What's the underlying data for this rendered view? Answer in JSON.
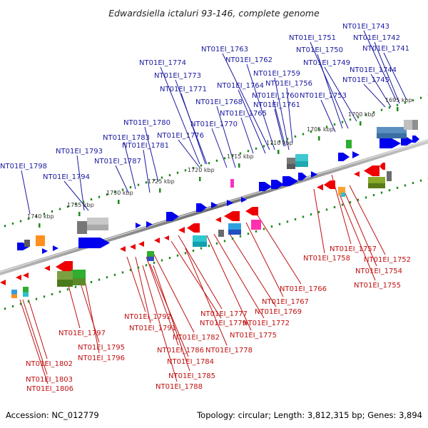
{
  "title": "Edwardsiella ictaluri 93-146, complete genome",
  "footer": {
    "accession": "Accession: NC_012779",
    "summary": "Topology: circular; Length: 3,812,315 bp; Genes: 3,894"
  },
  "colors": {
    "top_label": "#1a1aa0",
    "bottom_label": "#c01010",
    "forward_gene": "#0000ee",
    "reverse_gene": "#ee0000",
    "dots": "#1e8a1e"
  },
  "tick_labels": [
    "1695 kbp",
    "1700 kbp",
    "1705 kbp",
    "1710 kbp",
    "1715 kbp",
    "1720 kbp",
    "1725 kbp",
    "1730 kbp",
    "1735 kbp",
    "1740 kbp"
  ],
  "top_genes": [
    "NT01EI_1743",
    "NT01EI_1742",
    "NT01EI_1751",
    "NT01EI_1741",
    "NT01EI_1763",
    "NT01EI_1750",
    "NT01EI_1774",
    "NT01EI_1762",
    "NT01EI_1749",
    "NT01EI_1744",
    "NT01EI_1759",
    "NT01EI_1773",
    "NT01EI_1745",
    "NT01EI_1756",
    "NT01EI_1764",
    "NT01EI_1771",
    "NT01EI_1760",
    "NT01EI_1753",
    "NT01EI_1768",
    "NT01EI_1761",
    "NT01EI_1765",
    "NT01EI_1780",
    "NT01EI_1770",
    "NT01EI_1776",
    "NT01EI_1783",
    "NT01EI_1781",
    "NT01EI_1793",
    "NT01EI_1787",
    "NT01EI_1798",
    "NT01EI_1794"
  ],
  "bottom_genes": [
    "NT01EI_1757",
    "NT01EI_1758",
    "NT01EI_1752",
    "NT01EI_1754",
    "NT01EI_1755",
    "NT01EI_1766",
    "NT01EI_1767",
    "NT01EI_1777",
    "NT01EI_1769",
    "NT01EI_1792",
    "NT01EI_1779",
    "NT01EI_1772",
    "NT01EI_1791",
    "NT01EI_1775",
    "NT01EI_1797",
    "NT01EI_1782",
    "NT01EI_1778",
    "NT01EI_1786",
    "NT01EI_1795",
    "NT01EI_1784",
    "NT01EI_1796",
    "NT01EI_1785",
    "NT01EI_1802",
    "NT01EI_1788",
    "NT01EI_1803",
    "NT01EI_1806"
  ]
}
